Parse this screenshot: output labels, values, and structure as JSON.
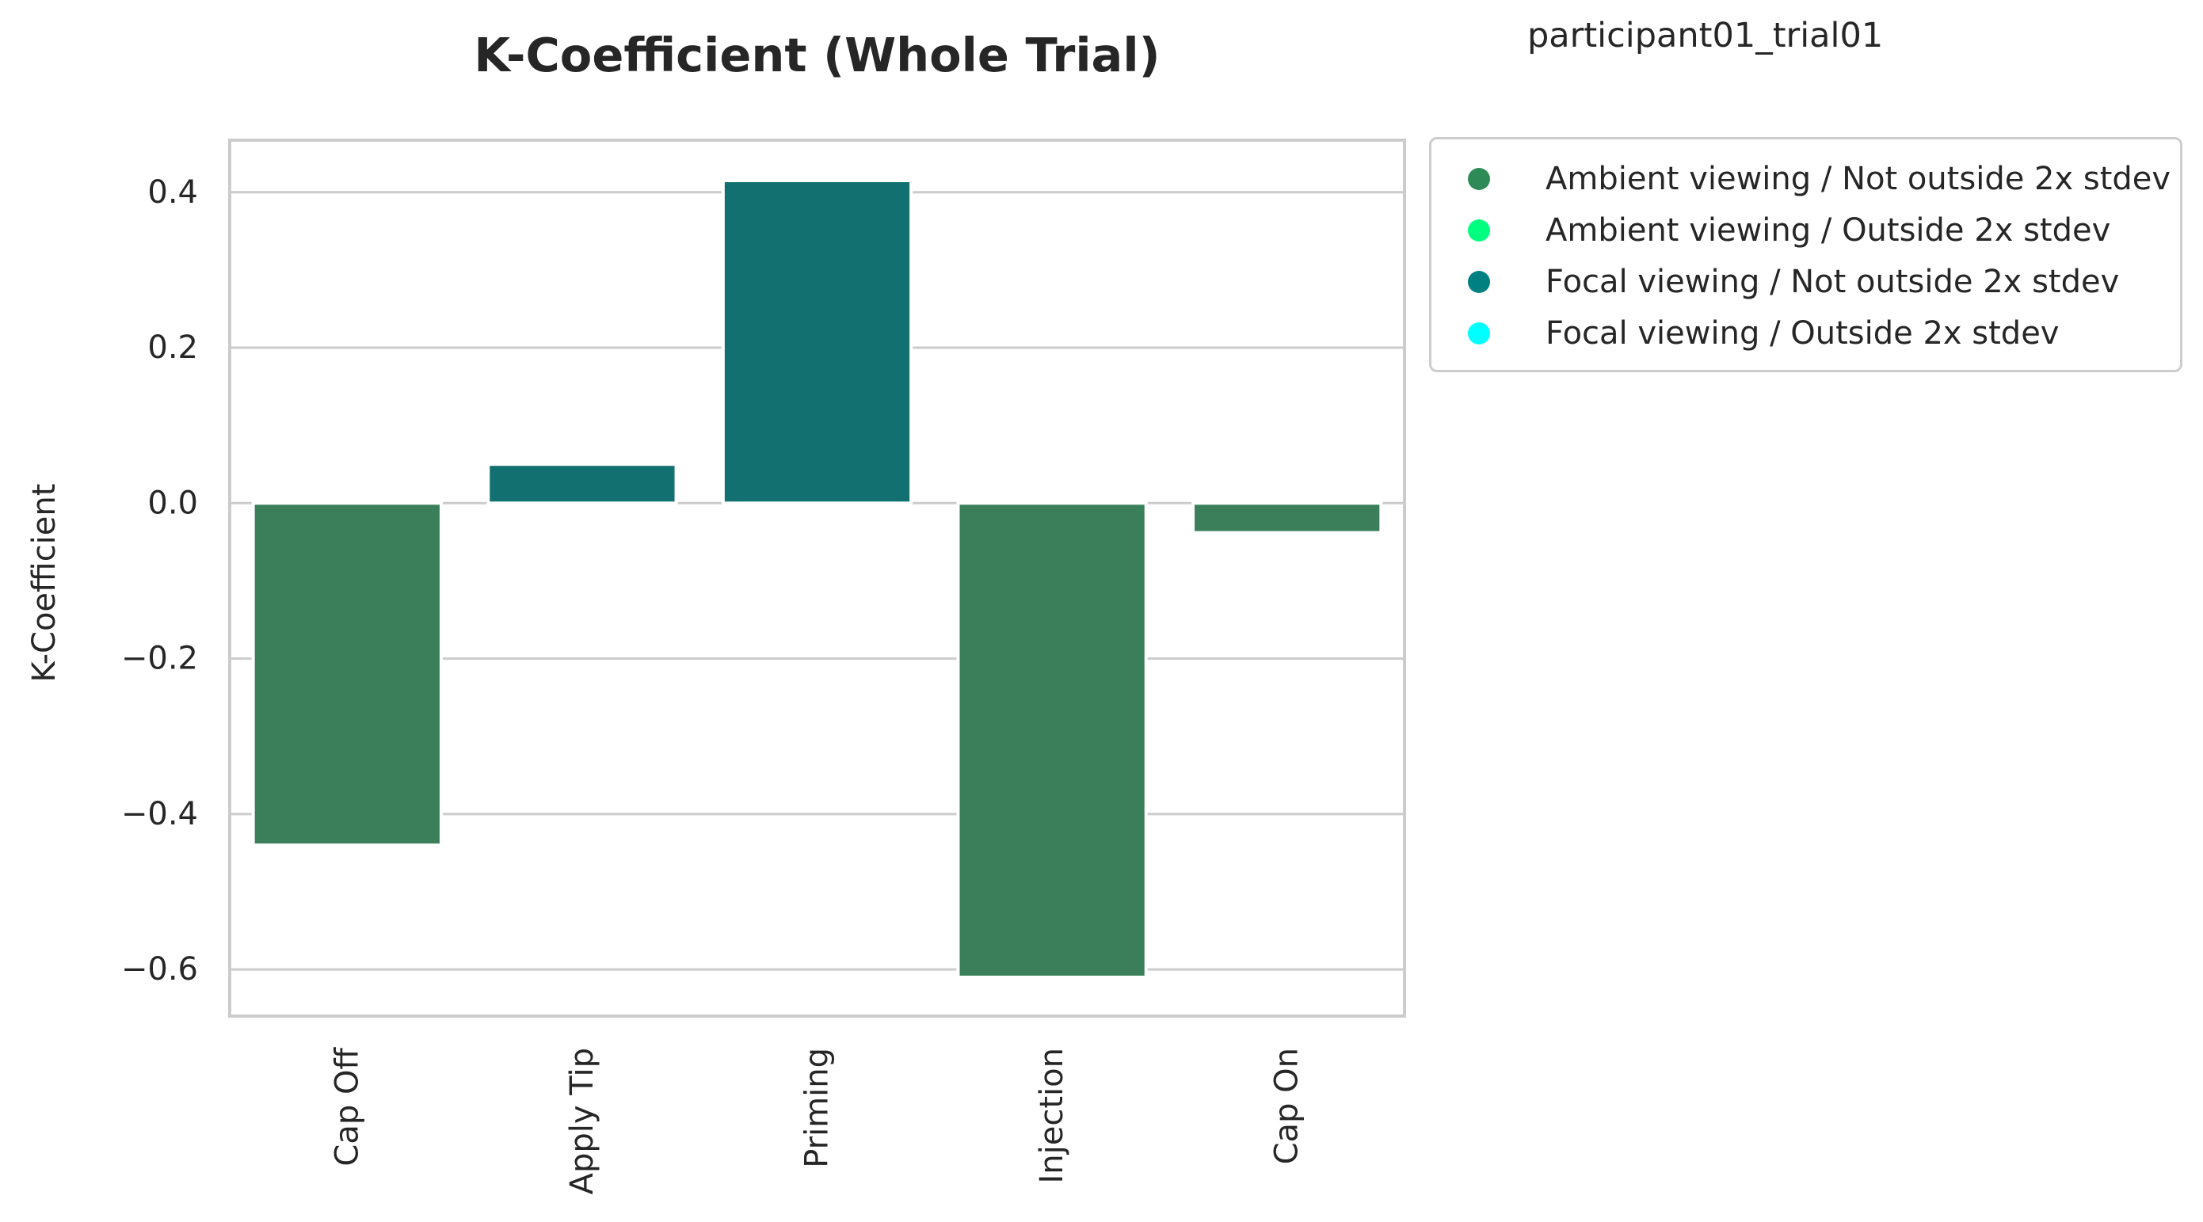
{
  "chart_data": {
    "type": "bar",
    "title": "K-Coefficient (Whole Trial)",
    "subtitle": "participant01_trial01",
    "xlabel": "",
    "ylabel": "K-Coefficient",
    "categories": [
      "Cap Off",
      "Apply Tip",
      "Priming",
      "Injection",
      "Cap On"
    ],
    "values": [
      -0.44,
      0.05,
      0.415,
      -0.61,
      -0.038
    ],
    "bar_groups": [
      "Ambient viewing / Not outside 2x stdev",
      "Focal viewing / Not outside 2x stdev",
      "Focal viewing / Not outside 2x stdev",
      "Ambient viewing / Not outside 2x stdev",
      "Ambient viewing / Not outside 2x stdev"
    ],
    "yticks": [
      -0.6,
      -0.4,
      -0.2,
      0.0,
      0.2,
      0.4
    ],
    "ytick_labels": [
      "−0.6",
      "−0.4",
      "−0.2",
      "0.0",
      "0.2",
      "0.4"
    ],
    "ylim": [
      -0.66,
      0.467
    ],
    "grid": "horizontal",
    "legend_position": "outside-top-right",
    "legend": [
      {
        "label": "Ambient viewing / Not outside 2x stdev",
        "marker_color": "#2e8b57",
        "bar_color": "#3a7f5a"
      },
      {
        "label": "Ambient viewing / Outside 2x stdev",
        "marker_color": "#00ff7f",
        "bar_color": "#00ff7f"
      },
      {
        "label": "Focal viewing / Not outside 2x stdev",
        "marker_color": "#008080",
        "bar_color": "#127170"
      },
      {
        "label": "Focal viewing / Outside 2x stdev",
        "marker_color": "#00ffff",
        "bar_color": "#00ffff"
      }
    ]
  }
}
